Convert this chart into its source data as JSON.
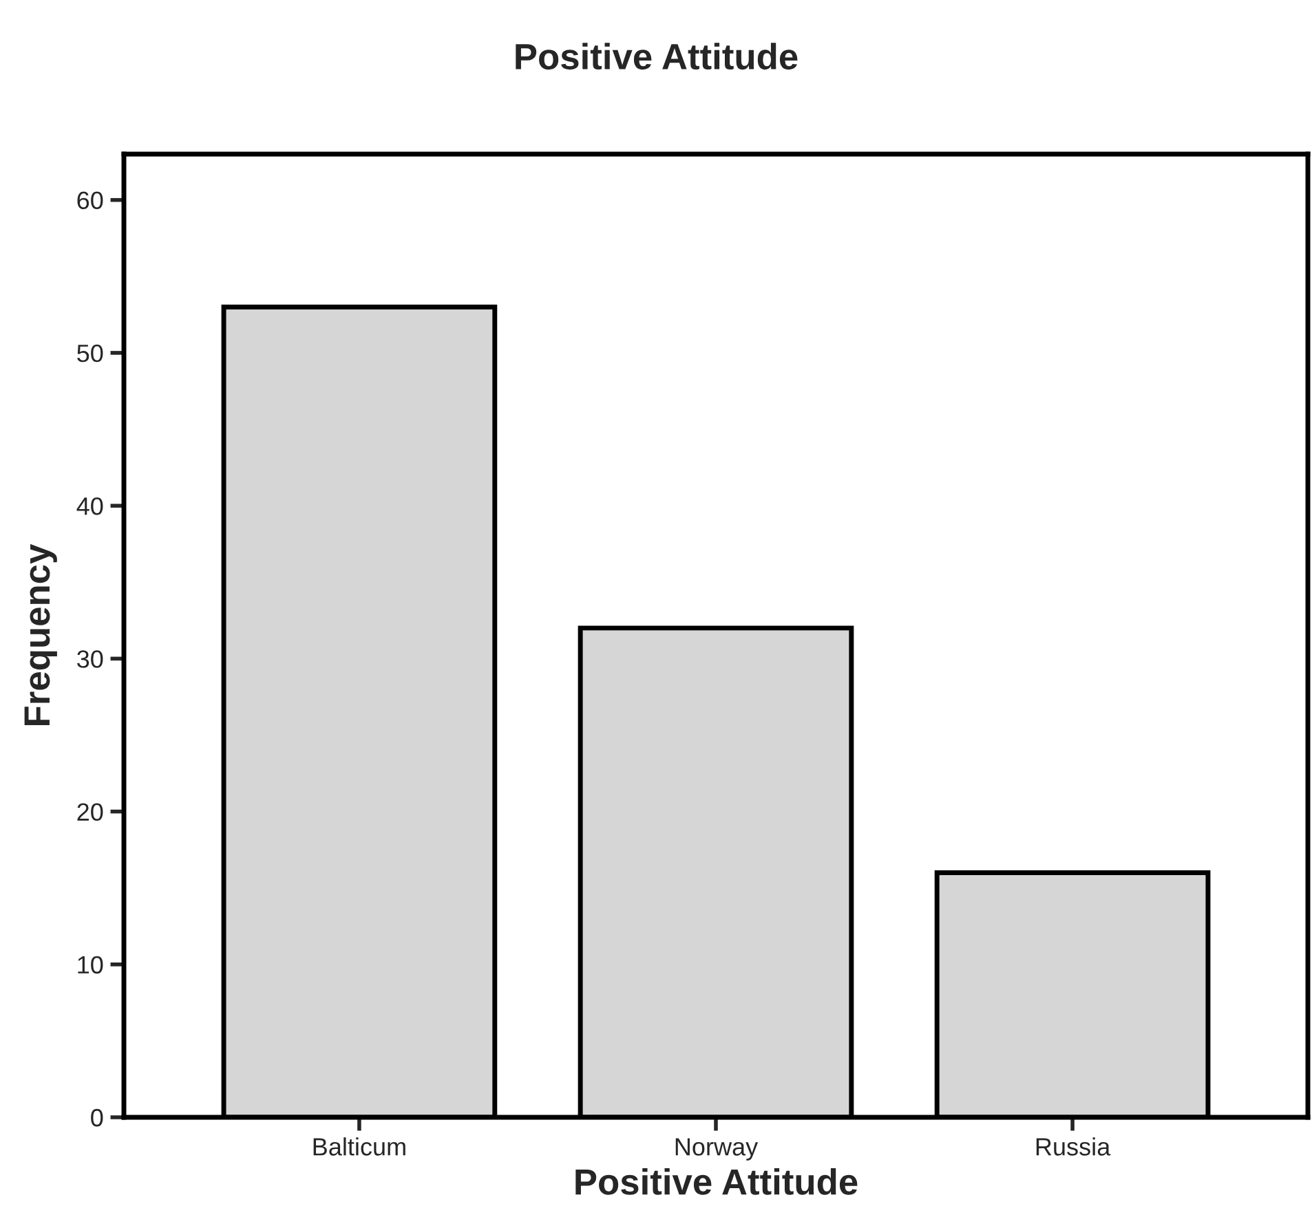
{
  "chart_data": {
    "type": "bar",
    "title": "Positive Attitude",
    "xlabel": "Positive Attitude",
    "ylabel": "Frequency",
    "categories": [
      "Balticum",
      "Norway",
      "Russia"
    ],
    "values": [
      53,
      32,
      16
    ],
    "color": "#d6d6d6",
    "ylim": [
      0,
      63
    ],
    "yticks": [
      0,
      10,
      20,
      30,
      40,
      50,
      60
    ],
    "grid": false
  }
}
